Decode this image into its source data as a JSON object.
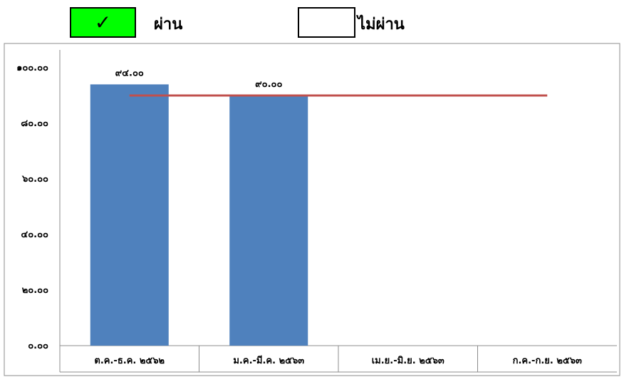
{
  "legend": {
    "pass": {
      "label": "ผ่าน",
      "symbol": "✓",
      "color": "#00FF00"
    },
    "fail": {
      "label": "ไม่ผ่าน",
      "color": "#FFFFFF"
    }
  },
  "chart_data": {
    "type": "bar",
    "categories": [
      "ต.ค.-ธ.ค. ๒๕๖๒",
      "ม.ค.-มี.ค. ๒๕๖๓",
      "เม.ย.-มิ.ย. ๒๕๖๓",
      "ก.ค.-ก.ย. ๒๕๖๓"
    ],
    "values": [
      94,
      90,
      null,
      null
    ],
    "data_labels": [
      "๙๔.๐๐",
      "๙๐.๐๐",
      "",
      ""
    ],
    "target": 90,
    "ylim": [
      0,
      100
    ],
    "yticks": [
      0,
      20,
      40,
      60,
      80,
      100
    ],
    "ytick_labels": [
      "๐.๐๐",
      "๒๐.๐๐",
      "๔๐.๐๐",
      "๖๐.๐๐",
      "๘๐.๐๐",
      "๑๐๐.๐๐"
    ],
    "bar_color": "#4F81BD",
    "target_color": "#C0504D",
    "grid": false,
    "legend_position": "top"
  }
}
